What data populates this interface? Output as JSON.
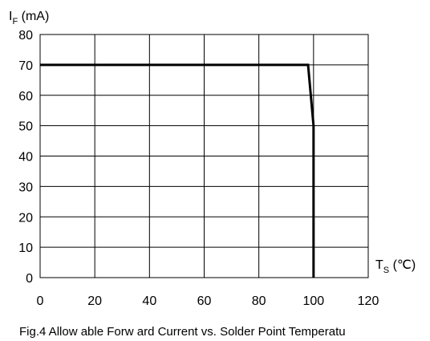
{
  "chart_data": {
    "type": "line",
    "x": [
      0,
      98,
      100,
      100
    ],
    "series": [
      {
        "values": [
          70,
          70,
          50,
          0
        ]
      }
    ],
    "xlim": [
      0,
      120
    ],
    "ylim": [
      0,
      80
    ],
    "x_ticks": [
      "0",
      "20",
      "40",
      "60",
      "80",
      "100",
      "120"
    ],
    "y_ticks": [
      "0",
      "10",
      "20",
      "30",
      "40",
      "50",
      "60",
      "70",
      "80"
    ],
    "grid": true,
    "ylabel": {
      "main": "I",
      "sub": "F",
      "unit": " (mA)"
    },
    "xlabel": {
      "main": "T",
      "sub": "S",
      "unit": " (℃)"
    },
    "caption": "Fig.4 Allow able Forw ard Current vs. Solder Point Temperatu",
    "line_color": "#000000"
  }
}
